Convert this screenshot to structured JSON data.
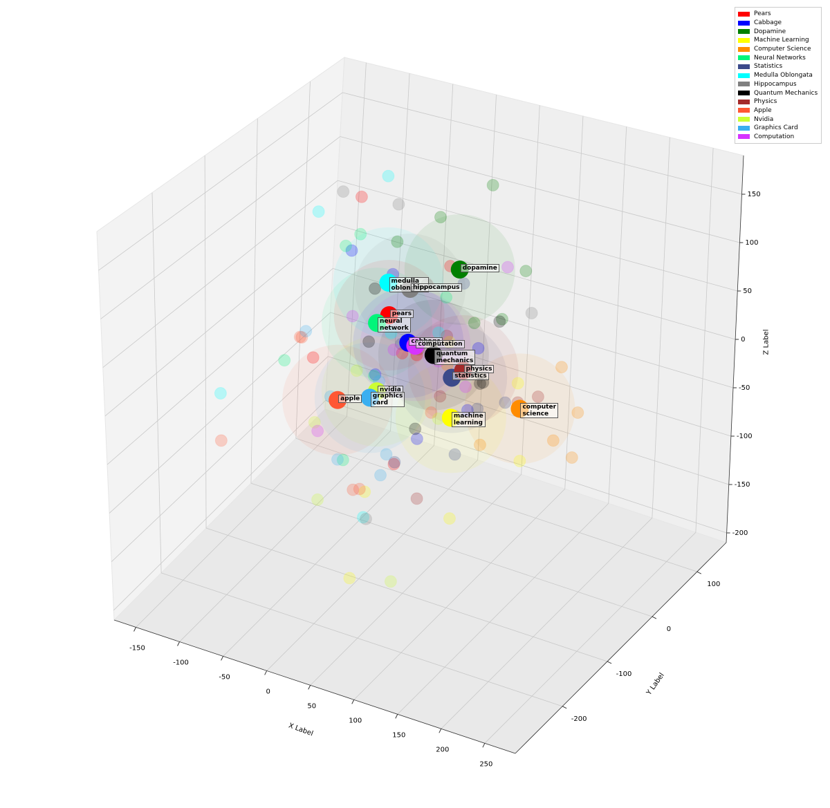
{
  "chart_data": {
    "type": "scatter3d",
    "xlabel": "X Label",
    "ylabel": "Y Label",
    "zlabel": "Z Label",
    "xlim": [
      -175,
      285
    ],
    "ylim": [
      -305,
      165
    ],
    "zlim": [
      -210,
      190
    ],
    "xticks": [
      -150,
      -100,
      -50,
      0,
      50,
      100,
      150,
      200,
      250
    ],
    "yticks": [
      -200,
      -100,
      0,
      100
    ],
    "zticks": [
      -200,
      -150,
      -100,
      -50,
      0,
      50,
      100,
      150
    ],
    "grid": true,
    "legend": "upper right",
    "series": [
      {
        "name": "Pears",
        "color": "#ff0000",
        "label": "pears",
        "centroid": {
          "x": 19,
          "y": -70,
          "z": 59
        },
        "points": {
          "x": [
            -40,
            60,
            -10,
            80,
            30,
            -60
          ],
          "y": [
            -120,
            -20,
            40,
            -150,
            -80,
            10
          ],
          "z": [
            20,
            100,
            -40,
            70,
            -90,
            130
          ]
        }
      },
      {
        "name": "Cabbage",
        "color": "#0000ff",
        "label": "cabbage",
        "centroid": {
          "x": 41,
          "y": -70,
          "z": 36
        },
        "points": {
          "x": [
            0,
            90,
            -30,
            60,
            20,
            110
          ],
          "y": [
            -30,
            -140,
            -60,
            20,
            -100,
            -50
          ],
          "z": [
            80,
            -20,
            110,
            -70,
            10,
            40
          ]
        }
      },
      {
        "name": "Dopamine",
        "color": "#008000",
        "label": "dopamine",
        "centroid": {
          "x": 100,
          "y": -70,
          "z": 128
        },
        "points": {
          "x": [
            60,
            140,
            90,
            170,
            40,
            120
          ],
          "y": [
            -40,
            -110,
            10,
            -60,
            -90,
            -20
          ],
          "z": [
            160,
            100,
            180,
            140,
            150,
            60
          ]
        }
      },
      {
        "name": "Machine Learning",
        "color": "#ffff00",
        "label": "machine\nlearning",
        "centroid": {
          "x": 90,
          "y": -70,
          "z": -29
        },
        "points": {
          "x": [
            40,
            150,
            110,
            60,
            180,
            70
          ],
          "y": [
            -160,
            -40,
            -110,
            -20,
            -90,
            -250
          ],
          "z": [
            -80,
            10,
            -110,
            20,
            -40,
            -120
          ]
        }
      },
      {
        "name": "Computer Science",
        "color": "#ff8c00",
        "label": "computer\nscience",
        "centroid": {
          "x": 169,
          "y": -70,
          "z": 2
        },
        "points": {
          "x": [
            200,
            140,
            230,
            180,
            120,
            240
          ],
          "y": [
            -40,
            -100,
            -60,
            -20,
            -130,
            -90
          ],
          "z": [
            40,
            -30,
            10,
            -50,
            60,
            -20
          ]
        }
      },
      {
        "name": "Neural Networks",
        "color": "#00f57a",
        "label": "neural\nnetwork",
        "centroid": {
          "x": 5,
          "y": -70,
          "z": 47
        },
        "points": {
          "x": [
            -60,
            30,
            -20,
            50,
            -90,
            10
          ],
          "y": [
            -20,
            -120,
            -60,
            -10,
            -90,
            -150
          ],
          "z": [
            90,
            20,
            130,
            60,
            -10,
            -60
          ]
        }
      },
      {
        "name": "Statistics",
        "color": "#3b4a8a",
        "label": "statistics",
        "centroid": {
          "x": 91,
          "y": -70,
          "z": 13
        },
        "points": {
          "x": [
            50,
            130,
            100,
            160,
            70,
            20
          ],
          "y": [
            -100,
            -30,
            -80,
            -140,
            -10,
            -60
          ],
          "z": [
            50,
            -20,
            -60,
            30,
            80,
            -100
          ]
        }
      },
      {
        "name": "Medulla Oblongata",
        "color": "#00ffff",
        "label": "medulla\noblongata",
        "centroid": {
          "x": 18,
          "y": -70,
          "z": 93
        },
        "points": {
          "x": [
            -80,
            50,
            -30,
            70,
            -130,
            0
          ],
          "y": [
            -40,
            -120,
            10,
            -60,
            -150,
            -90
          ],
          "z": [
            130,
            70,
            160,
            50,
            -30,
            -150
          ]
        }
      },
      {
        "name": "Hippocampus",
        "color": "#808080",
        "label": "hippocampus",
        "centroid": {
          "x": 43,
          "y": -70,
          "z": 93
        },
        "points": {
          "x": [
            0,
            80,
            -40,
            120,
            30,
            100
          ],
          "y": [
            -20,
            -100,
            -60,
            40,
            -140,
            -80
          ],
          "z": [
            150,
            120,
            170,
            40,
            -120,
            -20
          ]
        }
      },
      {
        "name": "Quantum Mechanics",
        "color": "#000000",
        "label": "quantum\nmechanics",
        "centroid": {
          "x": 70,
          "y": -70,
          "z": 31
        },
        "points": {
          "x": [
            30,
            110,
            60,
            140,
            90,
            20
          ],
          "y": [
            -130,
            -40,
            -90,
            -60,
            -10,
            -100
          ],
          "z": [
            60,
            0,
            -40,
            80,
            -20,
            100
          ]
        }
      },
      {
        "name": "Physics",
        "color": "#a52a2a",
        "label": "physics",
        "centroid": {
          "x": 104,
          "y": -70,
          "z": 24
        },
        "points": {
          "x": [
            70,
            150,
            120,
            50,
            190,
            100
          ],
          "y": [
            -100,
            -40,
            -130,
            -20,
            -70,
            -160
          ],
          "z": [
            50,
            -10,
            90,
            -40,
            20,
            -70
          ]
        }
      },
      {
        "name": "Apple",
        "color": "#ff5733",
        "label": "apple",
        "centroid": {
          "x": -40,
          "y": -70,
          "z": -47
        },
        "points": {
          "x": [
            -100,
            10,
            -70,
            40,
            -130,
            -20
          ],
          "y": [
            -40,
            -130,
            -90,
            -20,
            -150,
            -60
          ],
          "z": [
            -10,
            -100,
            20,
            -60,
            -80,
            -140
          ]
        }
      },
      {
        "name": "Nvidia",
        "color": "#ccff33",
        "label": "nvidia",
        "centroid": {
          "x": 5,
          "y": -70,
          "z": -25
        },
        "points": {
          "x": [
            -50,
            40,
            -20,
            70,
            10,
            90
          ],
          "y": [
            -100,
            -20,
            -150,
            -60,
            -120,
            -200
          ],
          "z": [
            -60,
            10,
            -110,
            -40,
            20,
            -140
          ]
        }
      },
      {
        "name": "Graphics Card",
        "color": "#3aaff0",
        "label": "graphics\ncard",
        "centroid": {
          "x": -3,
          "y": -70,
          "z": -34
        },
        "points": {
          "x": [
            -70,
            30,
            -40,
            60,
            -110,
            20
          ],
          "y": [
            -30,
            -110,
            -70,
            -150,
            -10,
            -90
          ],
          "z": [
            -70,
            10,
            -110,
            -40,
            -20,
            -100
          ]
        }
      },
      {
        "name": "Computation",
        "color": "#d633ff",
        "label": "computation",
        "centroid": {
          "x": 49,
          "y": -70,
          "z": 35
        },
        "points": {
          "x": [
            0,
            90,
            30,
            120,
            -30,
            70
          ],
          "y": [
            -110,
            -40,
            -80,
            -10,
            -130,
            -60
          ],
          "z": [
            70,
            -10,
            30,
            110,
            -50,
            20
          ]
        }
      }
    ]
  }
}
